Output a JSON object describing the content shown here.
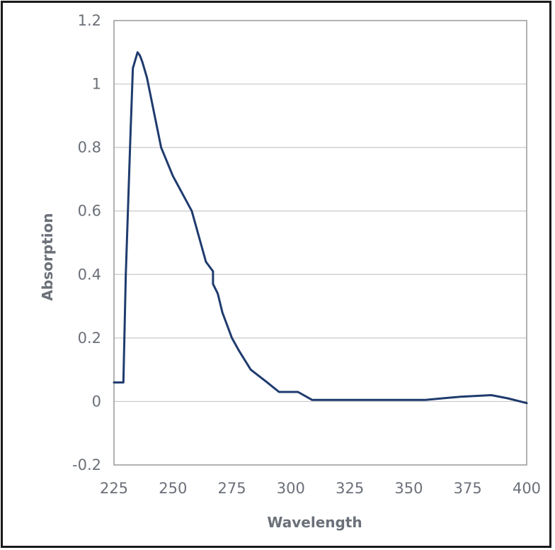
{
  "chart_data": {
    "type": "line",
    "title": "",
    "xlabel": "Wavelength",
    "ylabel": "Absorption",
    "xlim": [
      225,
      400
    ],
    "ylim": [
      -0.2,
      1.2
    ],
    "xticks": [
      225,
      250,
      275,
      300,
      325,
      350,
      375,
      400
    ],
    "yticks": [
      -0.2,
      0,
      0.2,
      0.4,
      0.6,
      0.8,
      1,
      1.2
    ],
    "ytick_labels": [
      "-0.2",
      "0",
      "0.2",
      "0.4",
      "0.6",
      "0.8",
      "1",
      "1.2"
    ],
    "grid": true,
    "legend": "none",
    "colors": {
      "line": "#1f3b6e",
      "grid": "#c8c8c8",
      "axis": "#999999",
      "text": "#6b7079"
    },
    "series": [
      {
        "x": [
          225,
          229,
          230,
          232,
          233,
          235,
          236,
          237,
          239,
          242,
          245,
          250,
          258,
          264,
          267,
          267,
          269,
          271,
          275,
          278,
          283,
          290,
          295,
          303,
          309,
          320,
          340,
          357,
          372,
          385,
          392,
          400
        ],
        "values": [
          0.06,
          0.06,
          0.4,
          0.84,
          1.05,
          1.1,
          1.09,
          1.07,
          1.02,
          0.91,
          0.8,
          0.71,
          0.6,
          0.44,
          0.41,
          0.37,
          0.34,
          0.28,
          0.2,
          0.16,
          0.1,
          0.06,
          0.03,
          0.03,
          0.005,
          0.005,
          0.005,
          0.005,
          0.015,
          0.02,
          0.01,
          -0.005
        ]
      }
    ]
  }
}
